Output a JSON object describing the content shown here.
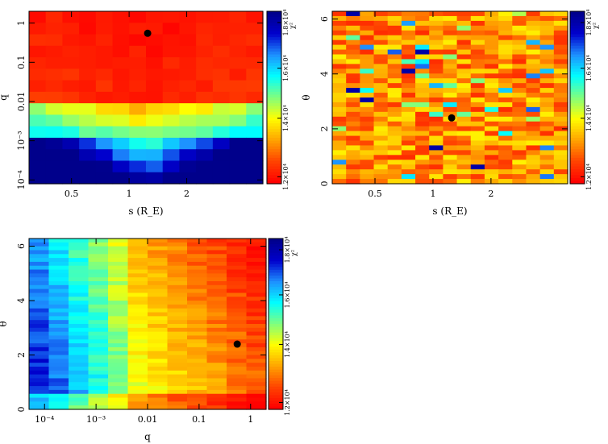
{
  "colorbar": {
    "label": "χ²",
    "tick_labels": [
      "1.8×10⁴",
      "1.6×10⁴",
      "1.4×10⁴",
      "1.2×10⁴"
    ],
    "top_label": "1.8×10⁴",
    "colormap": [
      "#00008b",
      "#0000cd",
      "#1e90ff",
      "#00ffff",
      "#7fff7f",
      "#ffff00",
      "#ffa500",
      "#ff4500",
      "#ff0000"
    ]
  },
  "chart_data": [
    {
      "type": "heatmap",
      "xlabel": "s (R_E)",
      "ylabel": "q",
      "x_scale": "log",
      "y_scale": "log",
      "x_ticks": [
        "0.5",
        "1",
        "2"
      ],
      "y_ticks": [
        "1",
        "0.1",
        "0.01",
        "10⁻³",
        "10⁻⁴"
      ],
      "xlim": [
        0.3,
        5.0
      ],
      "ylim": [
        8e-05,
        2.0
      ],
      "best_fit": {
        "x": 1.25,
        "y": 0.55
      },
      "colorbar_range": [
        12000,
        18000
      ]
    },
    {
      "type": "heatmap",
      "xlabel": "s (R_E)",
      "ylabel": "θ",
      "x_scale": "log",
      "y_scale": "linear",
      "x_ticks": [
        "0.5",
        "1",
        "2"
      ],
      "y_ticks": [
        "0",
        "2",
        "4",
        "6"
      ],
      "xlim": [
        0.3,
        5.0
      ],
      "ylim": [
        0,
        6.283
      ],
      "best_fit": {
        "x": 1.25,
        "y": 2.4
      },
      "colorbar_range": [
        12000,
        18000
      ]
    },
    {
      "type": "heatmap",
      "xlabel": "q",
      "ylabel": "θ",
      "x_scale": "log",
      "y_scale": "linear",
      "x_ticks": [
        "10⁻⁴",
        "10⁻³",
        "0.01",
        "0.1",
        "1"
      ],
      "y_ticks": [
        "0",
        "2",
        "4",
        "6"
      ],
      "xlim": [
        5e-05,
        2.0
      ],
      "ylim": [
        0,
        6.283
      ],
      "best_fit": {
        "x": 0.55,
        "y": 2.4
      },
      "colorbar_range": [
        12000,
        18000
      ]
    }
  ]
}
